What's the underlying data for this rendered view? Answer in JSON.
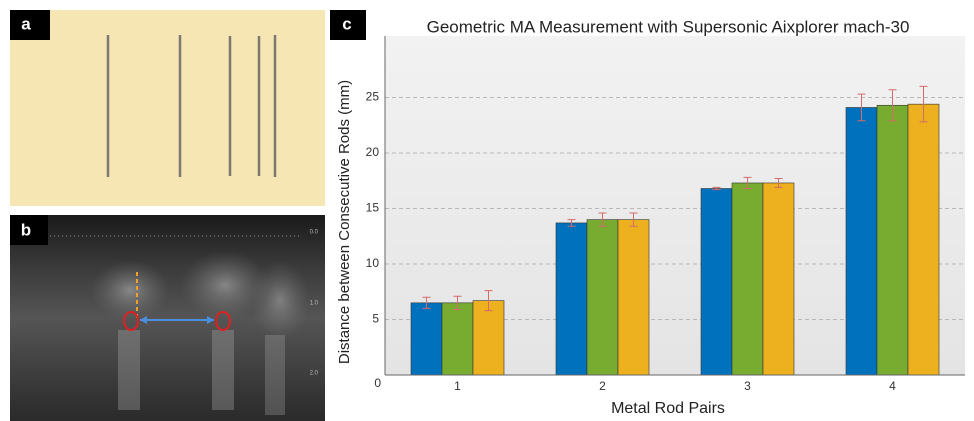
{
  "panels": {
    "a": "a",
    "b": "b",
    "c": "c"
  },
  "ultrasound_scale": [
    "0.0",
    "1.0",
    "2.0"
  ],
  "chart_data": {
    "type": "bar",
    "title": "Geometric MA Measurement with Supersonic Aixplorer mach-30",
    "x_label": "Metal Rod Pairs",
    "y_label": "Distance between Consecutive Rods (mm)",
    "categories": [
      "1",
      "2",
      "3",
      "4"
    ],
    "series": [
      {
        "color": "#0072bd",
        "values": [
          6.5,
          13.7,
          16.8,
          24.1
        ],
        "errors": [
          0.5,
          0.3,
          0.1,
          1.2
        ]
      },
      {
        "color": "#77ac30",
        "values": [
          6.5,
          14.0,
          17.3,
          24.3
        ],
        "errors": [
          0.6,
          0.6,
          0.5,
          1.4
        ]
      },
      {
        "color": "#edb120",
        "values": [
          6.7,
          14.0,
          17.3,
          24.4
        ],
        "errors": [
          0.9,
          0.6,
          0.4,
          1.6
        ]
      }
    ],
    "error_color": "#d46a6a",
    "ylim": [
      0,
      30
    ],
    "yticks": [
      0,
      5,
      10,
      15,
      20,
      25
    ],
    "grid": true
  }
}
